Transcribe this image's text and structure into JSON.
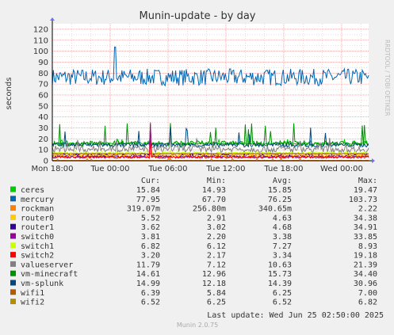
{
  "title": "Munin-update - by day",
  "side_label": "RRDTOOL / TOBI OETIKER",
  "footer": "Munin 2.0.75",
  "last_update": "Last update: Wed Jun 25 02:50:00 2025",
  "legend_headers": {
    "cur": "Cur:",
    "min": "Min:",
    "avg": "Avg:",
    "max": "Max:"
  },
  "legend": [
    {
      "name": "ceres",
      "color": "#00cc00",
      "cur": "15.84",
      "min": "14.93",
      "avg": "15.85",
      "max": "19.47"
    },
    {
      "name": "mercury",
      "color": "#0066b3",
      "cur": "77.95",
      "min": "67.70",
      "avg": "76.25",
      "max": "103.73"
    },
    {
      "name": "rockman",
      "color": "#ff8000",
      "cur": "319.07m",
      "min": "256.80m",
      "avg": "340.65m",
      "max": "2.22"
    },
    {
      "name": "router0",
      "color": "#ffcc00",
      "cur": "5.52",
      "min": "2.91",
      "avg": "4.63",
      "max": "34.38"
    },
    {
      "name": "router1",
      "color": "#330099",
      "cur": "3.62",
      "min": "3.02",
      "avg": "4.68",
      "max": "34.91"
    },
    {
      "name": "switch0",
      "color": "#990099",
      "cur": "3.81",
      "min": "2.20",
      "avg": "3.38",
      "max": "33.85"
    },
    {
      "name": "switch1",
      "color": "#ccff00",
      "cur": "6.82",
      "min": "6.12",
      "avg": "7.27",
      "max": "8.93"
    },
    {
      "name": "switch2",
      "color": "#ff0000",
      "cur": "3.20",
      "min": "2.17",
      "avg": "3.34",
      "max": "19.18"
    },
    {
      "name": "valueserver",
      "color": "#808080",
      "cur": "11.79",
      "min": "7.12",
      "avg": "10.63",
      "max": "21.39"
    },
    {
      "name": "vm-minecraft",
      "color": "#008f00",
      "cur": "14.61",
      "min": "12.96",
      "avg": "15.73",
      "max": "34.40"
    },
    {
      "name": "vm-splunk",
      "color": "#00487d",
      "cur": "14.99",
      "min": "12.18",
      "avg": "14.39",
      "max": "30.96"
    },
    {
      "name": "wifi1",
      "color": "#b35a00",
      "cur": "6.39",
      "min": "5.84",
      "avg": "6.25",
      "max": "7.00"
    },
    {
      "name": "wifi2",
      "color": "#b38f00",
      "cur": "6.52",
      "min": "6.25",
      "avg": "6.52",
      "max": "6.82"
    }
  ],
  "chart_data": {
    "type": "line",
    "title": "Munin-update - by day",
    "ylabel": "seconds",
    "xlabel": "",
    "ylim": [
      0,
      125
    ],
    "yticks": [
      0,
      10,
      20,
      30,
      40,
      50,
      60,
      70,
      80,
      90,
      100,
      110,
      120
    ],
    "xticks": [
      "Mon 18:00",
      "Tue 00:00",
      "Tue 06:00",
      "Tue 12:00",
      "Tue 18:00",
      "Wed 00:00"
    ],
    "xtick_hours": [
      0,
      6,
      12,
      18,
      24,
      30
    ],
    "x_range_hours": [
      0,
      32.8
    ],
    "grid": true,
    "series": [
      {
        "name": "mercury",
        "color": "#0066b3",
        "avg": 76.25,
        "min": 67.7,
        "max": 103.73,
        "cur": 77.95,
        "spike_at": 6.5
      },
      {
        "name": "ceres",
        "color": "#00cc00",
        "avg": 15.85,
        "min": 14.93,
        "max": 19.47,
        "cur": 15.84
      },
      {
        "name": "vm-minecraft",
        "color": "#008f00",
        "avg": 15.73,
        "min": 12.96,
        "max": 34.4,
        "cur": 14.61
      },
      {
        "name": "vm-splunk",
        "color": "#00487d",
        "avg": 14.39,
        "min": 12.18,
        "max": 30.96,
        "cur": 14.99
      },
      {
        "name": "valueserver",
        "color": "#808080",
        "avg": 10.63,
        "min": 7.12,
        "max": 21.39,
        "cur": 11.79
      },
      {
        "name": "switch1",
        "color": "#ccff00",
        "avg": 7.27,
        "min": 6.12,
        "max": 8.93,
        "cur": 6.82
      },
      {
        "name": "wifi2",
        "color": "#b38f00",
        "avg": 6.52,
        "min": 6.25,
        "max": 6.82,
        "cur": 6.52
      },
      {
        "name": "wifi1",
        "color": "#b35a00",
        "avg": 6.25,
        "min": 5.84,
        "max": 7.0,
        "cur": 6.39
      },
      {
        "name": "router1",
        "color": "#330099",
        "avg": 4.68,
        "min": 3.02,
        "max": 34.91,
        "cur": 3.62,
        "spike_at": 10.2
      },
      {
        "name": "router0",
        "color": "#ffcc00",
        "avg": 4.63,
        "min": 2.91,
        "max": 34.38,
        "cur": 5.52,
        "spike_at": 10.2
      },
      {
        "name": "switch0",
        "color": "#990099",
        "avg": 3.38,
        "min": 2.2,
        "max": 33.85,
        "cur": 3.81,
        "spike_at": 10.2
      },
      {
        "name": "switch2",
        "color": "#ff0000",
        "avg": 3.34,
        "min": 2.17,
        "max": 19.18,
        "cur": 3.2,
        "spike_at": 10.2
      },
      {
        "name": "rockman",
        "color": "#ff8000",
        "avg": 0.34065,
        "min": 0.2568,
        "max": 2.22,
        "cur": 0.31907
      }
    ]
  }
}
